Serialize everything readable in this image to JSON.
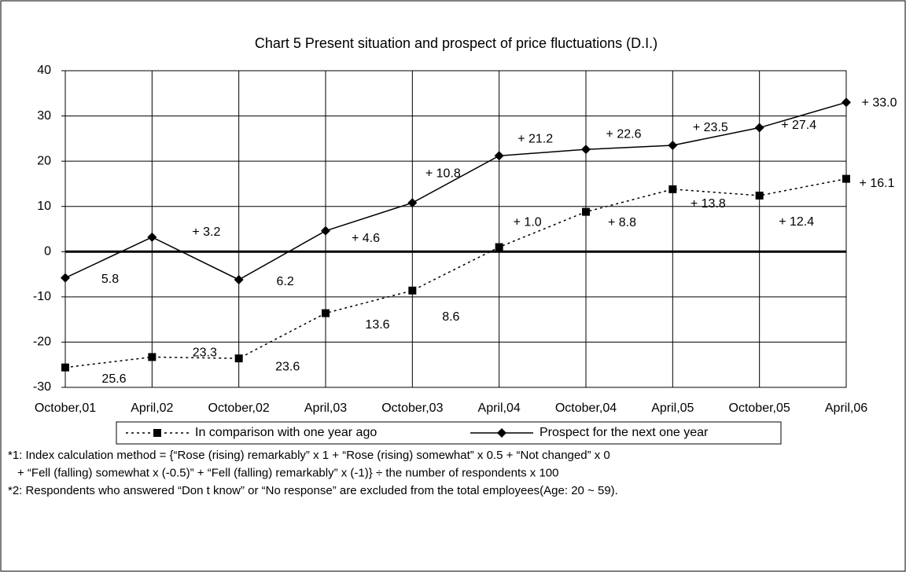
{
  "chart_data": {
    "type": "line",
    "title": "Chart 5  Present situation and prospect of price fluctuations (D.I.)",
    "categories": [
      "October,01",
      "April,02",
      "October,02",
      "April,03",
      "October,03",
      "April,04",
      "October,04",
      "April,05",
      "October,05",
      "April,06"
    ],
    "series": [
      {
        "name": "In comparison with one year ago",
        "color": "#000000",
        "linestyle": "dotted",
        "marker": "square",
        "values": [
          -25.6,
          -23.3,
          -23.6,
          -13.6,
          -8.6,
          1.0,
          8.8,
          13.8,
          12.4,
          16.1
        ],
        "value_labels": [
          "25.6",
          "23.3",
          "23.6",
          "13.6",
          "8.6",
          "+ 1.0",
          "+ 8.8",
          "+ 13.8",
          "+ 12.4",
          "+ 16.1"
        ]
      },
      {
        "name": "Prospect for the next one year",
        "color": "#000000",
        "linestyle": "solid",
        "marker": "diamond",
        "values": [
          -5.8,
          3.2,
          -6.2,
          4.6,
          10.8,
          21.2,
          22.6,
          23.5,
          27.4,
          33.0
        ],
        "value_labels": [
          "5.8",
          "+ 3.2",
          "6.2",
          "+ 4.6",
          "+ 10.8",
          "+ 21.2",
          "+ 22.6",
          "+ 23.5",
          "+ 27.4",
          "+ 33.0"
        ]
      }
    ],
    "ylim": [
      -30,
      40
    ],
    "yticks": [
      -30,
      -20,
      -10,
      0,
      10,
      20,
      30,
      40
    ],
    "grid": true,
    "legend": "bottom",
    "notes": [
      "*1: Index calculation method = {“Rose (rising) remarkably” x 1 + “Rose (rising) somewhat” x 0.5 + “Not changed” x 0",
      "+ “Fell (falling) somewhat x (-0.5)” + “Fell (falling) remarkably” x (-1)} ÷ the number of respondents x 100",
      "*2: Respondents who answered “Don t know” or “No response” are excluded from the total employees(Age: 20 ~ 59)."
    ]
  }
}
